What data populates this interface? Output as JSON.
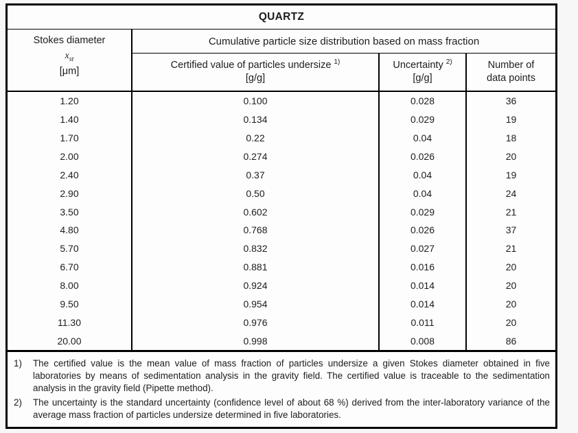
{
  "page": {
    "background": "#f7f7f7",
    "border_color": "#000000"
  },
  "table": {
    "title": "QUARTZ",
    "col1_header": {
      "line1": "Stokes diameter",
      "symbol": "x",
      "symbol_sub": "st",
      "unit": "[μm]"
    },
    "span_header": "Cumulative particle size distribution based on mass fraction",
    "columns": [
      {
        "label": "Certified value of particles undersize",
        "sup": "1)",
        "unit": "[g/g]"
      },
      {
        "label": "Uncertainty",
        "sup": "2)",
        "unit": "[g/g]"
      },
      {
        "line1": "Number of",
        "line2": "data points"
      }
    ],
    "rows": [
      [
        "1.20",
        "0.100",
        "0.028",
        "36"
      ],
      [
        "1.40",
        "0.134",
        "0.029",
        "19"
      ],
      [
        "1.70",
        "0.22",
        "0.04",
        "18"
      ],
      [
        "2.00",
        "0.274",
        "0.026",
        "20"
      ],
      [
        "2.40",
        "0.37",
        "0.04",
        "19"
      ],
      [
        "2.90",
        "0.50",
        "0.04",
        "24"
      ],
      [
        "3.50",
        "0.602",
        "0.029",
        "21"
      ],
      [
        "4.80",
        "0.768",
        "0.026",
        "37"
      ],
      [
        "5.70",
        "0.832",
        "0.027",
        "21"
      ],
      [
        "6.70",
        "0.881",
        "0.016",
        "20"
      ],
      [
        "8.00",
        "0.924",
        "0.014",
        "20"
      ],
      [
        "9.50",
        "0.954",
        "0.014",
        "20"
      ],
      [
        "11.30",
        "0.976",
        "0.011",
        "20"
      ],
      [
        "20.00",
        "0.998",
        "0.008",
        "86"
      ]
    ]
  },
  "footnotes": [
    {
      "marker": "1)",
      "text": "The certified value is the mean value of mass fraction of particles undersize a given Stokes diameter obtained in five laboratories by means of sedimentation analysis in the gravity field. The certified value is traceable to the sedimentation analysis in the gravity field (Pipette method)."
    },
    {
      "marker": "2)",
      "text": "The uncertainty is the standard uncertainty (confidence level of about 68 %) derived from the inter-laboratory variance of the average mass fraction of particles undersize determined in five laboratories."
    }
  ]
}
